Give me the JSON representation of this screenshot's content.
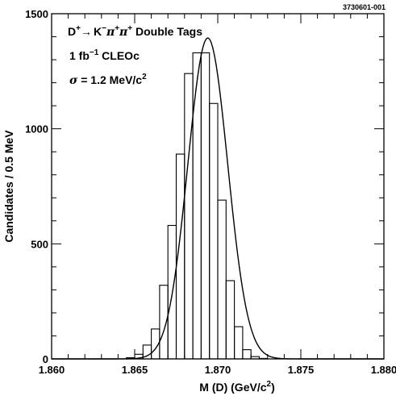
{
  "chart_data": {
    "type": "histogram",
    "id_label": "3730601-001",
    "annotation": {
      "decay": {
        "parent": "D",
        "parent_charge": "+",
        "arrow": "→",
        "k": "K",
        "k_charge": "−",
        "pi1": "π",
        "pi1_charge": "+",
        "pi2": "π",
        "pi2_charge": "+",
        "suffix": " Double Tags"
      },
      "lumi": {
        "prefix": "1 fb",
        "exp": "−1",
        "suffix": " CLEOc"
      },
      "resolution": {
        "symbol": "σ",
        "text": " = 1.2 MeV/c",
        "exp": "2"
      }
    },
    "xlabel": {
      "text": "M (D) (GeV/c",
      "exp": "2",
      "close": ")"
    },
    "ylabel": "Candidates / 0.5 MeV",
    "xlim": [
      1.86,
      1.88
    ],
    "ylim": [
      0,
      1500
    ],
    "xticks": [
      1.86,
      1.865,
      1.87,
      1.875,
      1.88
    ],
    "xtick_labels": [
      "1.860",
      "1.865",
      "1.870",
      "1.875",
      "1.880"
    ],
    "yticks": [
      0,
      500,
      1000,
      1500
    ],
    "ytick_labels": [
      "0",
      "500",
      "1000",
      "1500"
    ],
    "bin_width": 0.0005,
    "bins": {
      "edges": [
        1.8645,
        1.865,
        1.8655,
        1.866,
        1.8665,
        1.867,
        1.8675,
        1.868,
        1.8685,
        1.869,
        1.8695,
        1.87,
        1.8705,
        1.871,
        1.8715,
        1.872,
        1.8725,
        1.873,
        1.8735
      ],
      "counts": [
        5,
        20,
        60,
        130,
        320,
        580,
        890,
        1240,
        1330,
        1330,
        1110,
        690,
        340,
        140,
        40,
        10,
        2,
        0
      ]
    },
    "fit": {
      "function": "gaussian",
      "mean": 1.8694,
      "sigma": 0.0012,
      "amplitude": 1395
    }
  }
}
